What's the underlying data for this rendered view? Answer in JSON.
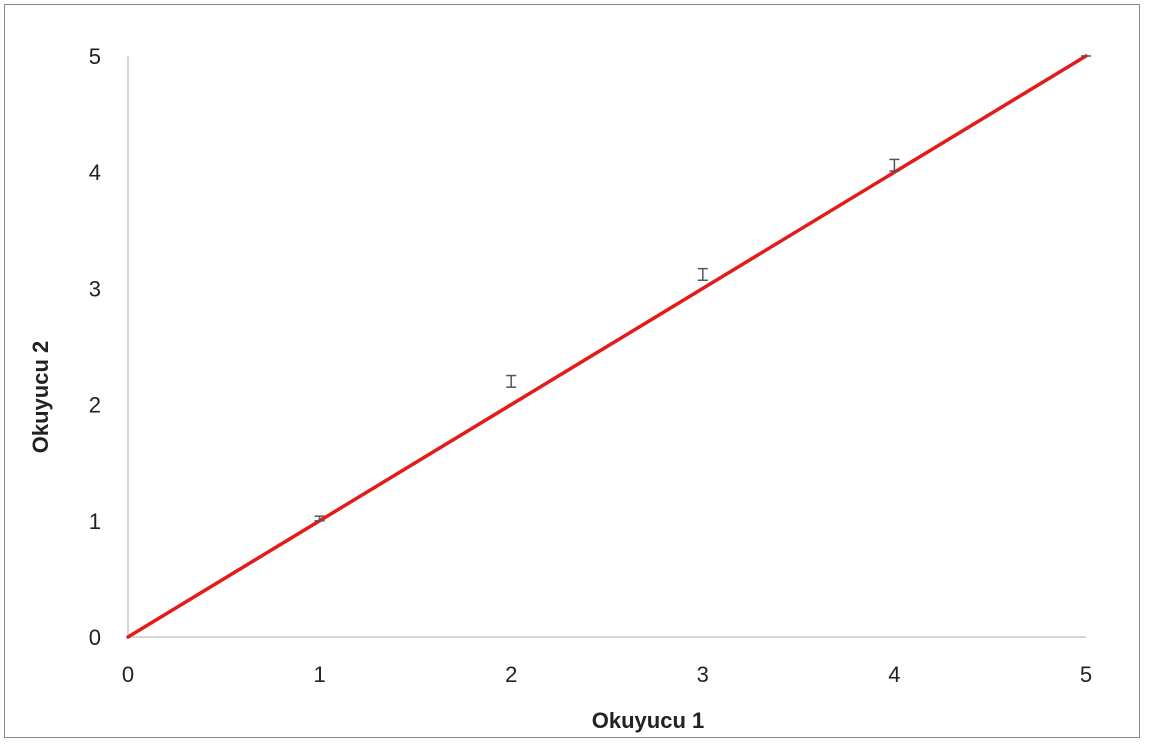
{
  "chart_data": {
    "type": "scatter",
    "xlabel": "Okuyucu 1",
    "ylabel": "Okuyucu 2",
    "xlim": [
      0,
      5
    ],
    "ylim": [
      0,
      5
    ],
    "x_ticks": [
      "0",
      "1",
      "2",
      "3",
      "4",
      "5"
    ],
    "y_ticks": [
      "0",
      "1",
      "2",
      "3",
      "4",
      "5"
    ],
    "grid": false,
    "line": {
      "name": "",
      "color": "#e31b1b",
      "points": [
        [
          0,
          0
        ],
        [
          5,
          5
        ]
      ]
    },
    "series": [
      {
        "name": "",
        "color": "#555555",
        "x": [
          1,
          2,
          3,
          4,
          5
        ],
        "y": [
          1.02,
          2.2,
          3.12,
          4.06,
          5.0
        ],
        "err": [
          0.02,
          0.05,
          0.05,
          0.05,
          0.0
        ]
      }
    ]
  }
}
